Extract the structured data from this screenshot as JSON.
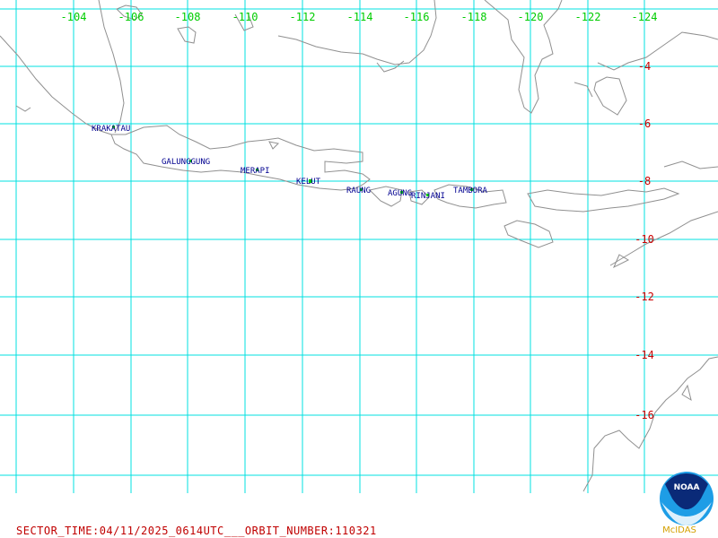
{
  "map": {
    "lon_labels": [
      "-104",
      "-106",
      "-108",
      "-110",
      "-112",
      "-114",
      "-116",
      "-118",
      "-120",
      "-122",
      "-124"
    ],
    "lat_labels": [
      "-4",
      "-6",
      "-8",
      "-10",
      "-12",
      "-14",
      "-16"
    ],
    "volcanoes": [
      {
        "name": "KRAKATAU"
      },
      {
        "name": "GALUNGGUNG"
      },
      {
        "name": "MERAPI"
      },
      {
        "name": "KELUT"
      },
      {
        "name": "RAUNG"
      },
      {
        "name": "AGUNG"
      },
      {
        "name": "RINJANI"
      },
      {
        "name": "TAMBORA"
      }
    ],
    "colors": {
      "grid": "#00e0e0",
      "lon_label": "#00cc00",
      "lat_label": "#cc0000",
      "coast": "#909090",
      "volcano_label": "#000090",
      "volcano_dot": "#00cc00"
    }
  },
  "footer": {
    "text": "SECTOR_TIME:04/11/2025_0614UTC___ORBIT_NUMBER:110321"
  },
  "logo": {
    "emblem_text": "NOAA",
    "caption": "McIDAS"
  }
}
